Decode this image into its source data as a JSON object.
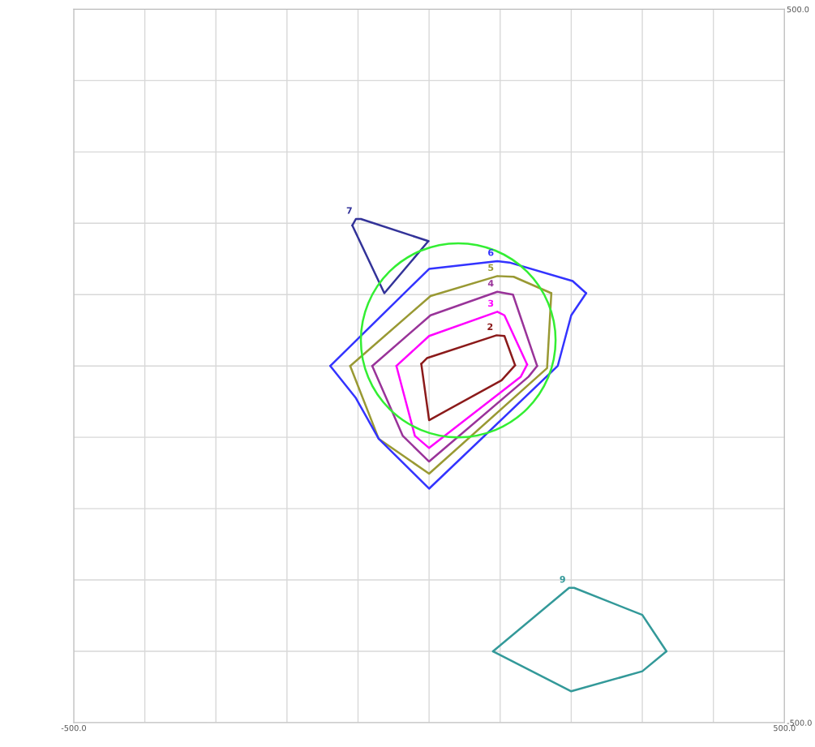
{
  "chart_data": {
    "type": "line",
    "xlim": [
      -500,
      500
    ],
    "ylim": [
      -500,
      500
    ],
    "xticks": [
      {
        "value": -500,
        "label": "-500.0"
      },
      {
        "value": -400,
        "label": null
      },
      {
        "value": -300,
        "label": null
      },
      {
        "value": -200,
        "label": null
      },
      {
        "value": -100,
        "label": null
      },
      {
        "value": 0,
        "label": null
      },
      {
        "value": 100,
        "label": null
      },
      {
        "value": 200,
        "label": null
      },
      {
        "value": 300,
        "label": null
      },
      {
        "value": 400,
        "label": null
      },
      {
        "value": 500,
        "label": "500.0"
      }
    ],
    "yticks": [
      {
        "value": -500,
        "label": "-500.0"
      },
      {
        "value": -400,
        "label": null
      },
      {
        "value": -300,
        "label": null
      },
      {
        "value": -200,
        "label": null
      },
      {
        "value": -100,
        "label": null
      },
      {
        "value": 0,
        "label": null
      },
      {
        "value": 100,
        "label": null
      },
      {
        "value": 200,
        "label": null
      },
      {
        "value": 300,
        "label": null
      },
      {
        "value": 400,
        "label": null
      },
      {
        "value": 500,
        "label": "500.0"
      }
    ],
    "grid": true,
    "marker": "none",
    "line_style": "solid",
    "legend": false,
    "series": [
      {
        "color": "#8b1a1a",
        "x": [
          -11,
          -3,
          95,
          106,
          121
        ],
        "values": [
          3,
          11,
          43,
          42,
          1
        ]
      },
      {
        "color": "#8b1a1a",
        "x": [
          -11,
          0,
          102,
          121
        ],
        "values": [
          3,
          -76,
          -20,
          1
        ]
      },
      {
        "color": "#ff00ff",
        "x": [
          -46,
          0,
          96,
          106,
          138
        ],
        "values": [
          0,
          42,
          76,
          71,
          2
        ]
      },
      {
        "color": "#ff00ff",
        "x": [
          -46,
          -20,
          0,
          129,
          138
        ],
        "values": [
          0,
          -98,
          -115,
          -15,
          2
        ]
      },
      {
        "color": "#993399",
        "x": [
          -80,
          2,
          96,
          118,
          152
        ],
        "values": [
          0,
          71,
          104,
          100,
          0
        ]
      },
      {
        "color": "#993399",
        "x": [
          -80,
          -37,
          0,
          140,
          152
        ],
        "values": [
          0,
          -98,
          -134,
          -15,
          0
        ]
      },
      {
        "color": "#999933",
        "x": [
          -111,
          2,
          96,
          119,
          172
        ],
        "values": [
          0,
          98,
          126,
          125,
          102
        ]
      },
      {
        "color": "#999933",
        "x": [
          -111,
          -71,
          0,
          166,
          172
        ],
        "values": [
          0,
          -102,
          -151,
          -3,
          102
        ]
      },
      {
        "color": "#3333ff",
        "x": [
          -139,
          0,
          96,
          113,
          202,
          221
        ],
        "values": [
          0,
          136,
          147,
          145,
          119,
          102
        ]
      },
      {
        "color": "#3333ff",
        "x": [
          -139,
          -103,
          -71,
          0,
          181,
          200,
          221
        ],
        "values": [
          0,
          -45,
          -102,
          -172,
          0,
          71,
          102
        ]
      },
      {
        "color": "#333399",
        "x": [
          -108,
          -103,
          -96,
          -1
        ],
        "values": [
          197,
          206,
          206,
          175
        ]
      },
      {
        "color": "#333399",
        "x": [
          -108,
          -63,
          -1
        ],
        "values": [
          197,
          102,
          175
        ]
      },
      {
        "color": "#339999",
        "x": [
          90,
          197,
          204,
          300,
          334
        ],
        "values": [
          -400,
          -311,
          -311,
          -349,
          -400
        ]
      },
      {
        "color": "#339999",
        "x": [
          90,
          200,
          300,
          334
        ],
        "values": [
          -400,
          -456,
          -428,
          -400
        ]
      }
    ],
    "annotations": [
      {
        "text": "2",
        "x": 95,
        "y": 43
      },
      {
        "text": "3",
        "x": 96,
        "y": 76
      },
      {
        "text": "4",
        "x": 96,
        "y": 104
      },
      {
        "text": "5",
        "x": 96,
        "y": 126
      },
      {
        "text": "6",
        "x": 96,
        "y": 147
      },
      {
        "text": "7",
        "x": -103,
        "y": 206
      },
      {
        "text": "9",
        "x": 197,
        "y": -311
      }
    ]
  }
}
